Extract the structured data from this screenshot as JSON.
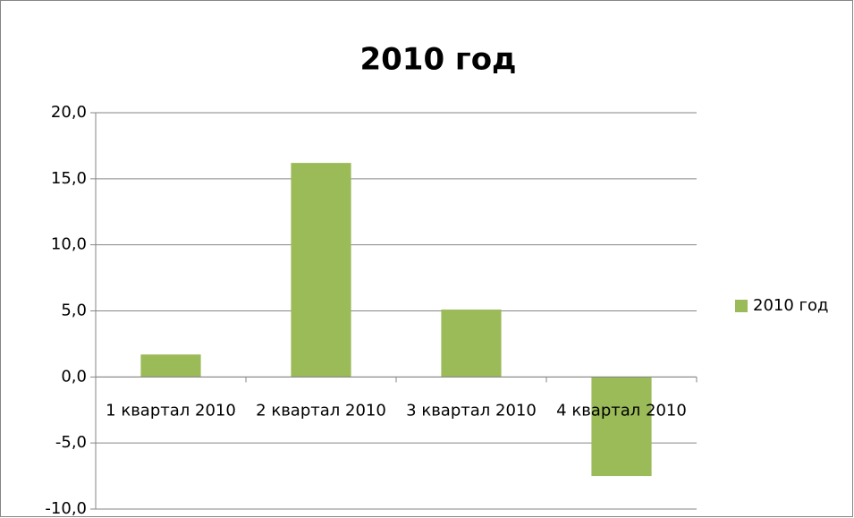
{
  "chart_data": {
    "type": "bar",
    "title": "2010 год",
    "categories": [
      "1 квартал 2010",
      "2 квартал 2010",
      "3 квартал 2010",
      "4 квартал 2010"
    ],
    "series": [
      {
        "name": "2010 год",
        "color": "#9bbb59",
        "values": [
          1.7,
          16.2,
          5.1,
          -7.5
        ]
      }
    ],
    "ylim": [
      -10,
      20
    ],
    "yticks": [
      {
        "value": -10,
        "label": "-10,0"
      },
      {
        "value": -5,
        "label": "-5,0"
      },
      {
        "value": 0,
        "label": "0,0"
      },
      {
        "value": 5,
        "label": "5,0"
      },
      {
        "value": 10,
        "label": "10,0"
      },
      {
        "value": 15,
        "label": "15,0"
      },
      {
        "value": 20,
        "label": "20,0"
      }
    ],
    "grid": true,
    "legend": "right"
  }
}
